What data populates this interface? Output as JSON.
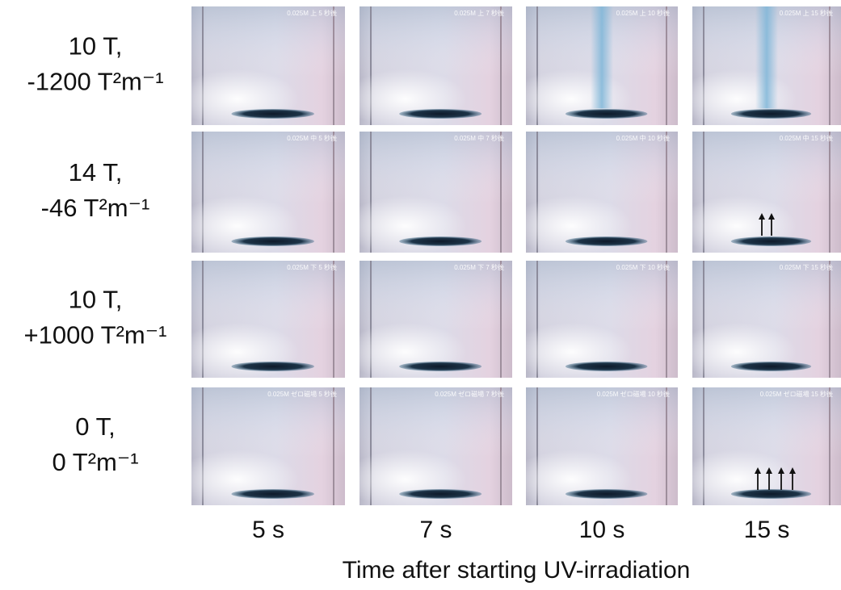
{
  "figure": {
    "rows": [
      {
        "label": [
          "10 T,",
          "-1200 T²m⁻¹"
        ],
        "stamps": [
          "0.025M 上 5 秒後",
          "0.025M 上 7 秒後",
          "0.025M 上 10 秒後",
          "0.025M 上 15 秒後"
        ]
      },
      {
        "label": [
          "14 T,",
          "-46 T²m⁻¹"
        ],
        "stamps": [
          "0.025M 中 5 秒後",
          "0.025M 中 7 秒後",
          "0.025M 中 10 秒後",
          "0.025M 中 15 秒後"
        ]
      },
      {
        "label": [
          "10 T,",
          "+1000 T²m⁻¹"
        ],
        "stamps": [
          "0.025M 下 5 秒後",
          "0.025M 下 7 秒後",
          "0.025M 下 10 秒後",
          "0.025M 下 15 秒後"
        ]
      },
      {
        "label": [
          "0 T,",
          "0 T²m⁻¹"
        ],
        "stamps": [
          "0.025M ゼロ磁場 5 秒後",
          "0.025M ゼロ磁場 7 秒後",
          "0.025M ゼロ磁場 10 秒後",
          "0.025M ゼロ磁場 15 秒後"
        ]
      }
    ],
    "columns": [
      "5 s",
      "7 s",
      "10 s",
      "15 s"
    ],
    "axis_title": "Time after starting UV-irradiation"
  }
}
